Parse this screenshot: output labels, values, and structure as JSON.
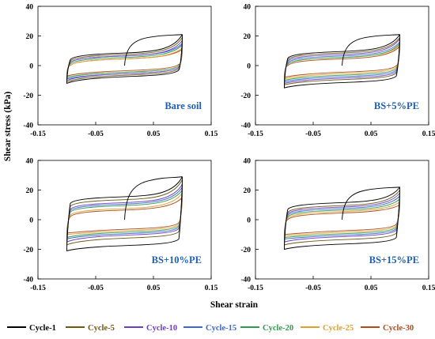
{
  "figure": {
    "ylabel": "Shear stress (kPa)",
    "xlabel": "Shear strain"
  },
  "legend": [
    {
      "name": "Cycle-1",
      "color": "#000000"
    },
    {
      "name": "Cycle-5",
      "color": "#6b5a14"
    },
    {
      "name": "Cycle-10",
      "color": "#6a3fc0"
    },
    {
      "name": "Cycle-15",
      "color": "#3b67d6"
    },
    {
      "name": "Cycle-20",
      "color": "#2e9b4c"
    },
    {
      "name": "Cycle-25",
      "color": "#e0a030"
    },
    {
      "name": "Cycle-30",
      "color": "#b04a18"
    }
  ],
  "chart_data": [
    {
      "type": "line",
      "panel_label": "Bare soil",
      "xlim": [
        -0.15,
        0.15
      ],
      "ylim": [
        -40,
        40
      ],
      "xticks": [
        "-0.15",
        "-0.05",
        "0.05",
        "0.15"
      ],
      "yticks": [
        "40",
        "20",
        "0",
        "-20",
        "-40"
      ],
      "series": [
        {
          "name": "Cycle-1",
          "top": 21,
          "plateau_top": 9,
          "bottom": -12,
          "plateau_bot": -8
        },
        {
          "name": "Cycle-5",
          "top": 19,
          "plateau_top": 8,
          "bottom": -11,
          "plateau_bot": -7
        },
        {
          "name": "Cycle-10",
          "top": 17,
          "plateau_top": 7,
          "bottom": -10,
          "plateau_bot": -6
        },
        {
          "name": "Cycle-15",
          "top": 15,
          "plateau_top": 7,
          "bottom": -9,
          "plateau_bot": -6
        },
        {
          "name": "Cycle-20",
          "top": 14,
          "plateau_top": 6,
          "bottom": -8,
          "plateau_bot": -5
        },
        {
          "name": "Cycle-25",
          "top": 12,
          "plateau_top": 5,
          "bottom": -8,
          "plateau_bot": -5
        },
        {
          "name": "Cycle-30",
          "top": 11,
          "plateau_top": 5,
          "bottom": -7,
          "plateau_bot": -4
        }
      ]
    },
    {
      "type": "line",
      "panel_label": "BS+5%PE",
      "xlim": [
        -0.15,
        0.15
      ],
      "ylim": [
        -40,
        40
      ],
      "xticks": [
        "-0.15",
        "-0.05",
        "0.05",
        "0.15"
      ],
      "yticks": [
        "40",
        "20",
        "0",
        "-20",
        "-40"
      ],
      "series": [
        {
          "name": "Cycle-1",
          "top": 21,
          "plateau_top": 10,
          "bottom": -15,
          "plateau_bot": -12
        },
        {
          "name": "Cycle-5",
          "top": 19,
          "plateau_top": 9,
          "bottom": -13,
          "plateau_bot": -10
        },
        {
          "name": "Cycle-10",
          "top": 18,
          "plateau_top": 8,
          "bottom": -12,
          "plateau_bot": -9
        },
        {
          "name": "Cycle-15",
          "top": 16,
          "plateau_top": 7,
          "bottom": -11,
          "plateau_bot": -8
        },
        {
          "name": "Cycle-20",
          "top": 15,
          "plateau_top": 6,
          "bottom": -10,
          "plateau_bot": -7
        },
        {
          "name": "Cycle-25",
          "top": 14,
          "plateau_top": 6,
          "bottom": -9,
          "plateau_bot": -6
        },
        {
          "name": "Cycle-30",
          "top": 13,
          "plateau_top": 5,
          "bottom": -8,
          "plateau_bot": -5
        }
      ]
    },
    {
      "type": "line",
      "panel_label": "BS+10%PE",
      "xlim": [
        -0.15,
        0.15
      ],
      "ylim": [
        -40,
        40
      ],
      "xticks": [
        "-0.15",
        "-0.05",
        "0.05",
        "0.15"
      ],
      "yticks": [
        "40",
        "20",
        "0",
        "-20",
        "-40"
      ],
      "series": [
        {
          "name": "Cycle-1",
          "top": 29,
          "plateau_top": 16,
          "bottom": -21,
          "plateau_bot": -18
        },
        {
          "name": "Cycle-5",
          "top": 27,
          "plateau_top": 14,
          "bottom": -17,
          "plateau_bot": -13
        },
        {
          "name": "Cycle-10",
          "top": 24,
          "plateau_top": 12,
          "bottom": -15,
          "plateau_bot": -11
        },
        {
          "name": "Cycle-15",
          "top": 22,
          "plateau_top": 11,
          "bottom": -13,
          "plateau_bot": -10
        },
        {
          "name": "Cycle-20",
          "top": 20,
          "plateau_top": 10,
          "bottom": -12,
          "plateau_bot": -9
        },
        {
          "name": "Cycle-25",
          "top": 18,
          "plateau_top": 8,
          "bottom": -10,
          "plateau_bot": -8
        },
        {
          "name": "Cycle-30",
          "top": 15,
          "plateau_top": 7,
          "bottom": -9,
          "plateau_bot": -7
        }
      ]
    },
    {
      "type": "line",
      "panel_label": "BS+15%PE",
      "xlim": [
        -0.15,
        0.15
      ],
      "ylim": [
        -40,
        40
      ],
      "xticks": [
        "-0.15",
        "-0.05",
        "0.05",
        "0.15"
      ],
      "yticks": [
        "40",
        "20",
        "0",
        "-20",
        "-40"
      ],
      "series": [
        {
          "name": "Cycle-1",
          "top": 22,
          "plateau_top": 12,
          "bottom": -20,
          "plateau_bot": -17
        },
        {
          "name": "Cycle-5",
          "top": 20,
          "plateau_top": 10,
          "bottom": -17,
          "plateau_bot": -14
        },
        {
          "name": "Cycle-10",
          "top": 18,
          "plateau_top": 9,
          "bottom": -15,
          "plateau_bot": -12
        },
        {
          "name": "Cycle-15",
          "top": 16,
          "plateau_top": 8,
          "bottom": -13,
          "plateau_bot": -11
        },
        {
          "name": "Cycle-20",
          "top": 14,
          "plateau_top": 7,
          "bottom": -12,
          "plateau_bot": -10
        },
        {
          "name": "Cycle-25",
          "top": 12,
          "plateau_top": 6,
          "bottom": -11,
          "plateau_bot": -9
        },
        {
          "name": "Cycle-30",
          "top": 10,
          "plateau_top": 5,
          "bottom": -10,
          "plateau_bot": -8
        }
      ]
    }
  ]
}
